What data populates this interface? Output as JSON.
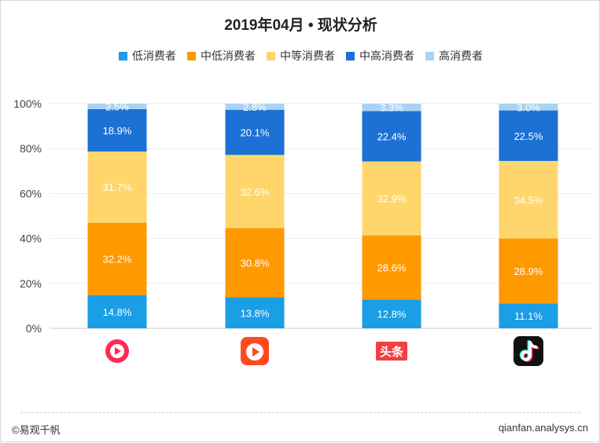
{
  "title": "2019年04月 • 现状分析",
  "footer": {
    "left": "©易观千帆",
    "right": "qianfan.analysys.cn"
  },
  "apps": [
    {
      "icon": "red-play-circle-icon",
      "label": ""
    },
    {
      "icon": "red-play-square-icon",
      "label": ""
    },
    {
      "icon": "toutiao-logo-icon",
      "label": "头条"
    },
    {
      "icon": "tiktok-logo-icon",
      "label": ""
    }
  ],
  "chart_data": {
    "type": "bar",
    "stacked": true,
    "title": "2019年04月 • 现状分析",
    "categories": [
      "",
      "",
      "",
      ""
    ],
    "yticks": [
      "0%",
      "20%",
      "40%",
      "60%",
      "80%",
      "100%"
    ],
    "ylim": [
      0,
      100
    ],
    "grid": true,
    "legend_position": "top",
    "series": [
      {
        "name": "低消费者",
        "color": "#1a9ee5",
        "values": [
          14.8,
          13.8,
          12.8,
          11.1
        ],
        "labels": [
          "14.8%",
          "13.8%",
          "12.8%",
          "11.1%"
        ]
      },
      {
        "name": "中低消费者",
        "color": "#ff9900",
        "values": [
          32.2,
          30.8,
          28.6,
          28.9
        ],
        "labels": [
          "32.2%",
          "30.8%",
          "28.6%",
          "28.9%"
        ]
      },
      {
        "name": "中等消费者",
        "color": "#ffd66b",
        "values": [
          31.7,
          32.6,
          32.9,
          34.5
        ],
        "labels": [
          "31.7%",
          "32.6%",
          "32.9%",
          "34.5%"
        ]
      },
      {
        "name": "中高消费者",
        "color": "#1c71d4",
        "values": [
          18.9,
          20.1,
          22.4,
          22.5
        ],
        "labels": [
          "18.9%",
          "20.1%",
          "22.4%",
          "22.5%"
        ]
      },
      {
        "name": "高消费者",
        "color": "#a8d3f5",
        "values": [
          2.5,
          2.8,
          3.3,
          3.0
        ],
        "labels": [
          "2.5%",
          "2.8%",
          "3.3%",
          "3.0%"
        ]
      }
    ]
  }
}
